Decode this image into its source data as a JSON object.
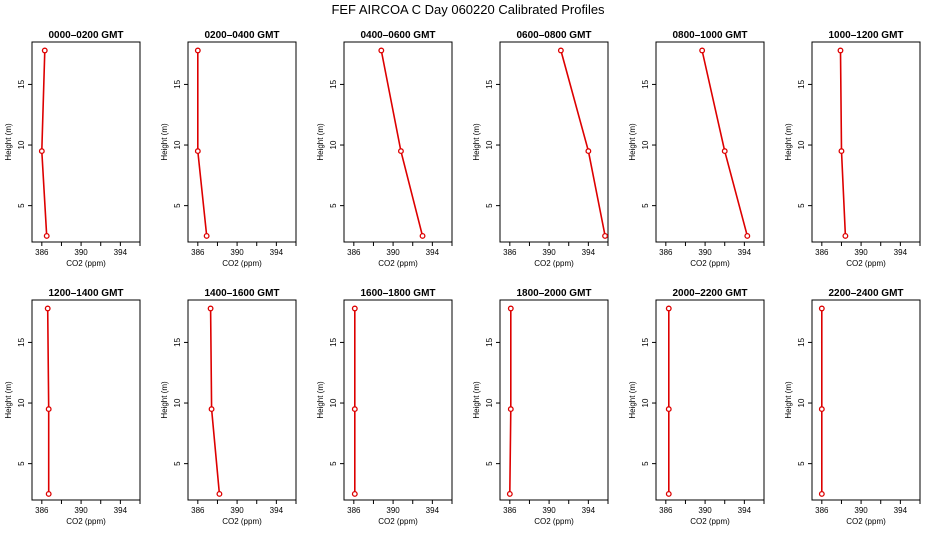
{
  "figure": {
    "title": "FEF AIRCOA C  Day 060220  Calibrated Profiles",
    "line_color": "#dd0000"
  },
  "chart_data": [
    {
      "type": "line",
      "title": "0000–0200 GMT",
      "xlabel": "CO2 (ppm)",
      "ylabel": "Height (m)",
      "xlim": [
        385,
        396
      ],
      "ylim": [
        2,
        18.5
      ],
      "xticks": [
        386,
        390,
        394
      ],
      "yticks": [
        5,
        10,
        15
      ],
      "grid": false,
      "series": [
        {
          "x": [
            386.3,
            386.0,
            386.5
          ],
          "y": [
            17.8,
            9.5,
            2.5
          ]
        }
      ]
    },
    {
      "type": "line",
      "title": "0200–0400 GMT",
      "xlabel": "CO2 (ppm)",
      "ylabel": "Height (m)",
      "xlim": [
        385,
        396
      ],
      "ylim": [
        2,
        18.5
      ],
      "xticks": [
        386,
        390,
        394
      ],
      "yticks": [
        5,
        10,
        15
      ],
      "grid": false,
      "series": [
        {
          "x": [
            386.0,
            386.0,
            386.9
          ],
          "y": [
            17.8,
            9.5,
            2.5
          ]
        }
      ]
    },
    {
      "type": "line",
      "title": "0400–0600 GMT",
      "xlabel": "CO2 (ppm)",
      "ylabel": "Height (m)",
      "xlim": [
        385,
        396
      ],
      "ylim": [
        2,
        18.5
      ],
      "xticks": [
        386,
        390,
        394
      ],
      "yticks": [
        5,
        10,
        15
      ],
      "grid": false,
      "series": [
        {
          "x": [
            388.8,
            390.8,
            393.0
          ],
          "y": [
            17.8,
            9.5,
            2.5
          ]
        }
      ]
    },
    {
      "type": "line",
      "title": "0600–0800 GMT",
      "xlabel": "CO2 (ppm)",
      "ylabel": "Height (m)",
      "xlim": [
        385,
        396
      ],
      "ylim": [
        2,
        18.5
      ],
      "xticks": [
        386,
        390,
        394
      ],
      "yticks": [
        5,
        10,
        15
      ],
      "grid": false,
      "series": [
        {
          "x": [
            391.2,
            394.0,
            395.7
          ],
          "y": [
            17.8,
            9.5,
            2.5
          ]
        }
      ]
    },
    {
      "type": "line",
      "title": "0800–1000 GMT",
      "xlabel": "CO2 (ppm)",
      "ylabel": "Height (m)",
      "xlim": [
        385,
        396
      ],
      "ylim": [
        2,
        18.5
      ],
      "xticks": [
        386,
        390,
        394
      ],
      "yticks": [
        5,
        10,
        15
      ],
      "grid": false,
      "series": [
        {
          "x": [
            389.7,
            392.0,
            394.3
          ],
          "y": [
            17.8,
            9.5,
            2.5
          ]
        }
      ]
    },
    {
      "type": "line",
      "title": "1000–1200 GMT",
      "xlabel": "CO2 (ppm)",
      "ylabel": "Height (m)",
      "xlim": [
        385,
        396
      ],
      "ylim": [
        2,
        18.5
      ],
      "xticks": [
        386,
        390,
        394
      ],
      "yticks": [
        5,
        10,
        15
      ],
      "grid": false,
      "series": [
        {
          "x": [
            387.9,
            388.0,
            388.4
          ],
          "y": [
            17.8,
            9.5,
            2.5
          ]
        }
      ]
    },
    {
      "type": "line",
      "title": "1200–1400 GMT",
      "xlabel": "CO2 (ppm)",
      "ylabel": "Height (m)",
      "xlim": [
        385,
        396
      ],
      "ylim": [
        2,
        18.5
      ],
      "xticks": [
        386,
        390,
        394
      ],
      "yticks": [
        5,
        10,
        15
      ],
      "grid": false,
      "series": [
        {
          "x": [
            386.6,
            386.7,
            386.7
          ],
          "y": [
            17.8,
            9.5,
            2.5
          ]
        }
      ]
    },
    {
      "type": "line",
      "title": "1400–1600 GMT",
      "xlabel": "CO2 (ppm)",
      "ylabel": "Height (m)",
      "xlim": [
        385,
        396
      ],
      "ylim": [
        2,
        18.5
      ],
      "xticks": [
        386,
        390,
        394
      ],
      "yticks": [
        5,
        10,
        15
      ],
      "grid": false,
      "series": [
        {
          "x": [
            387.3,
            387.4,
            388.2
          ],
          "y": [
            17.8,
            9.5,
            2.5
          ]
        }
      ]
    },
    {
      "type": "line",
      "title": "1600–1800 GMT",
      "xlabel": "CO2 (ppm)",
      "ylabel": "Height (m)",
      "xlim": [
        385,
        396
      ],
      "ylim": [
        2,
        18.5
      ],
      "xticks": [
        386,
        390,
        394
      ],
      "yticks": [
        5,
        10,
        15
      ],
      "grid": false,
      "series": [
        {
          "x": [
            386.1,
            386.1,
            386.1
          ],
          "y": [
            17.8,
            9.5,
            2.5
          ]
        }
      ]
    },
    {
      "type": "line",
      "title": "1800–2000 GMT",
      "xlabel": "CO2 (ppm)",
      "ylabel": "Height (m)",
      "xlim": [
        385,
        396
      ],
      "ylim": [
        2,
        18.5
      ],
      "xticks": [
        386,
        390,
        394
      ],
      "yticks": [
        5,
        10,
        15
      ],
      "grid": false,
      "series": [
        {
          "x": [
            386.1,
            386.1,
            386.0
          ],
          "y": [
            17.8,
            9.5,
            2.5
          ]
        }
      ]
    },
    {
      "type": "line",
      "title": "2000–2200 GMT",
      "xlabel": "CO2 (ppm)",
      "ylabel": "Height (m)",
      "xlim": [
        385,
        396
      ],
      "ylim": [
        2,
        18.5
      ],
      "xticks": [
        386,
        390,
        394
      ],
      "yticks": [
        5,
        10,
        15
      ],
      "grid": false,
      "series": [
        {
          "x": [
            386.3,
            386.3,
            386.3
          ],
          "y": [
            17.8,
            9.5,
            2.5
          ]
        }
      ]
    },
    {
      "type": "line",
      "title": "2200–2400 GMT",
      "xlabel": "CO2 (ppm)",
      "ylabel": "Height (m)",
      "xlim": [
        385,
        396
      ],
      "ylim": [
        2,
        18.5
      ],
      "xticks": [
        386,
        390,
        394
      ],
      "yticks": [
        5,
        10,
        15
      ],
      "grid": false,
      "series": [
        {
          "x": [
            386.0,
            386.0,
            386.0
          ],
          "y": [
            17.8,
            9.5,
            2.5
          ]
        }
      ]
    }
  ]
}
